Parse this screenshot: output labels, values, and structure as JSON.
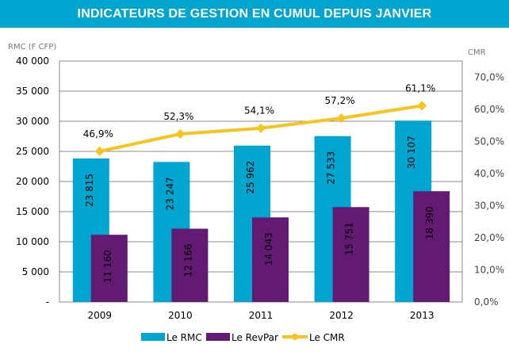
{
  "title": "INDICATEURS DE GESTION EN CUMUL DEPUIS JANVIER",
  "chart_data": {
    "type": "bar+line",
    "title": "INDICATEURS DE GESTION EN CUMUL DEPUIS JANVIER",
    "categories": [
      "2009",
      "2010",
      "2011",
      "2012",
      "2013"
    ],
    "ylabel": "RMC (F CFP)",
    "y2label": "CMR",
    "ylim": [
      0,
      40000
    ],
    "y_ticks": [
      "-",
      "5 000",
      "10 000",
      "15 000",
      "20 000",
      "25 000",
      "30 000",
      "35 000",
      "40 000"
    ],
    "y2lim": [
      0,
      75
    ],
    "y2_ticks": [
      "0,0%",
      "10,0%",
      "20,0%",
      "30,0%",
      "40,0%",
      "50,0%",
      "60,0%",
      "70,0%"
    ],
    "grid": true,
    "legend": "bottom",
    "series": [
      {
        "name": "Le RMC",
        "type": "bar",
        "axis": "left",
        "color": "#00a6cf",
        "values": [
          23815,
          23247,
          25962,
          27533,
          30107
        ],
        "labels": [
          "23 815",
          "23 247",
          "25 962",
          "27 533",
          "30 107"
        ]
      },
      {
        "name": "Le RevPar",
        "type": "bar",
        "axis": "left",
        "color": "#621a72",
        "values": [
          11160,
          12166,
          14043,
          15751,
          18390
        ],
        "labels": [
          "11 160",
          "12 166",
          "14 043",
          "15 751",
          "18 390"
        ]
      },
      {
        "name": "Le CMR",
        "type": "line",
        "axis": "right",
        "color": "#f7c31c",
        "values": [
          46.9,
          52.3,
          54.1,
          57.2,
          61.1
        ],
        "labels": [
          "46,9%",
          "52,3%",
          "54,1%",
          "57,2%",
          "61,1%"
        ]
      }
    ]
  }
}
